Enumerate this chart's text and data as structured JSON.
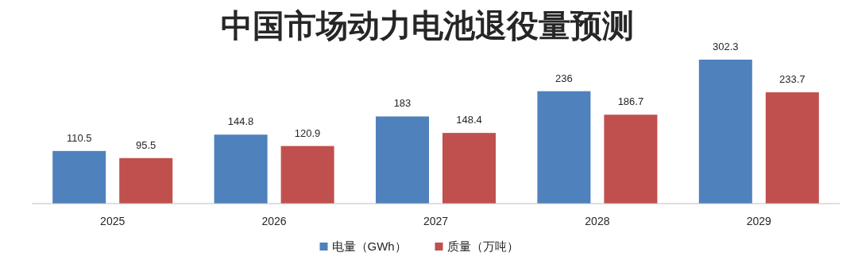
{
  "chart_data": {
    "type": "bar",
    "title": "中国市场动力电池退役量预测",
    "categories": [
      "2025",
      "2026",
      "2027",
      "2028",
      "2029"
    ],
    "series": [
      {
        "name": "电量（GWh）",
        "color": "#4f81bd",
        "values": [
          110.5,
          144.8,
          183,
          236,
          302.3
        ]
      },
      {
        "name": "质量（万吨）",
        "color": "#c0504d",
        "values": [
          95.5,
          120.9,
          148.4,
          186.7,
          233.7
        ]
      }
    ],
    "data_labels": true,
    "legend": "bottom"
  }
}
